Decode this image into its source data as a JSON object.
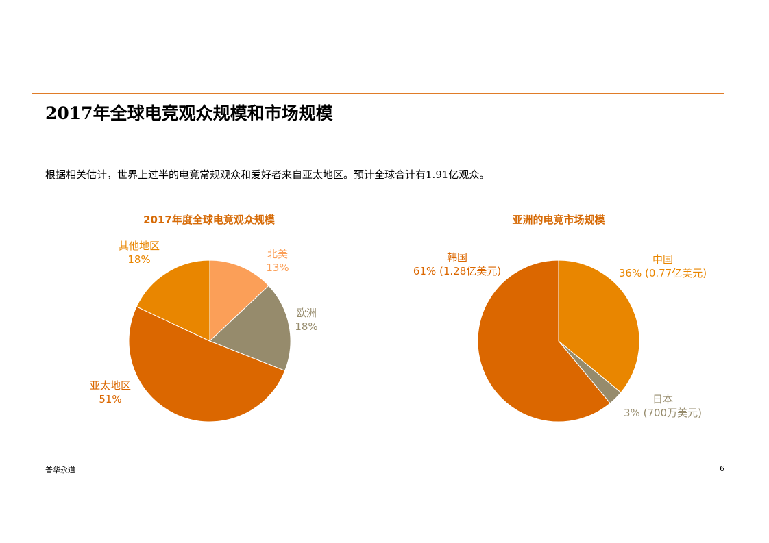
{
  "page": {
    "title": "2017年全球电竞观众规模和市场规模",
    "intro": "根据相关估计，世界上过半的电竞常规观众和爱好者来自亚太地区。预计全球合计有1.91亿观众。",
    "footer_brand": "普华永道",
    "page_number": "6"
  },
  "colors": {
    "accent_rule": "#e07c28",
    "title_orange": "#d66a06"
  },
  "chart_data": [
    {
      "type": "pie",
      "title": "2017年度全球电竞观众规模",
      "slices": [
        {
          "label": "北美",
          "value": 13,
          "value_label": "13%",
          "color": "#fb9f58"
        },
        {
          "label": "欧洲",
          "value": 18,
          "value_label": "18%",
          "color": "#968b6c"
        },
        {
          "label": "亚太地区",
          "value": 51,
          "value_label": "51%",
          "color": "#db6700"
        },
        {
          "label": "其他地区",
          "value": 18,
          "value_label": "18%",
          "color": "#e98600"
        }
      ]
    },
    {
      "type": "pie",
      "title": "亚洲的电竞市场规模",
      "slices": [
        {
          "label": "中国",
          "value": 36,
          "value_label": "36% (0.77亿美元)",
          "color": "#e98600"
        },
        {
          "label": "日本",
          "value": 3,
          "value_label": "3% (700万美元)",
          "color": "#968b6c"
        },
        {
          "label": "韩国",
          "value": 61,
          "value_label": "61% (1.28亿美元)",
          "color": "#db6700"
        }
      ]
    }
  ]
}
